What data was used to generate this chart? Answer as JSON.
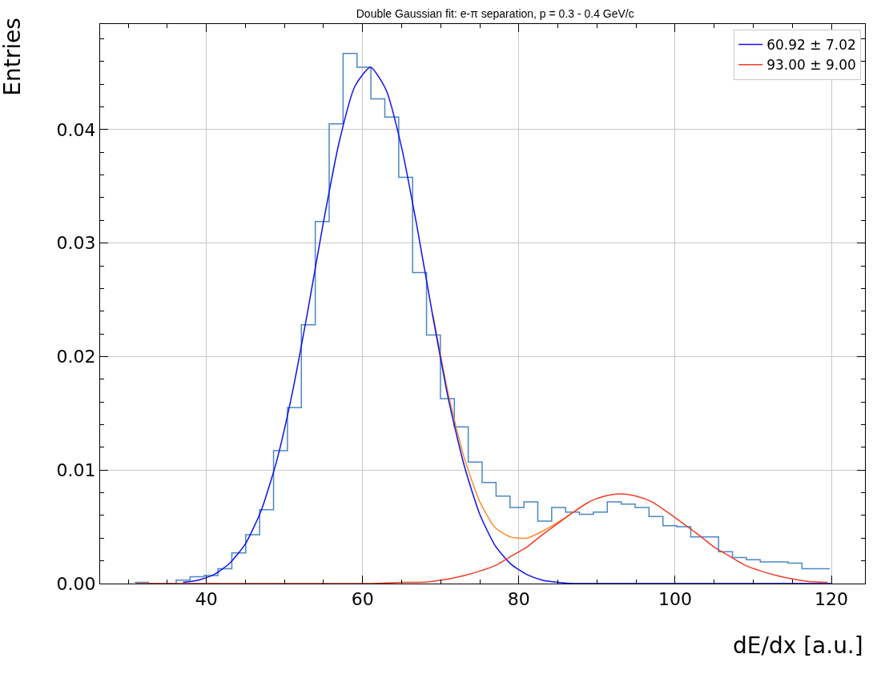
{
  "chart_data": {
    "type": "histogram",
    "title": "Double Gaussian fit: e-π separation, p = 0.3 - 0.4 GeV/c",
    "xlabel": "dE/dx [a.u.]",
    "ylabel": "Entries",
    "bins": [
      30.8,
      32.58,
      34.36,
      36.14,
      37.92,
      39.7,
      41.48,
      43.26,
      45.04,
      46.82,
      48.6,
      50.38,
      52.16,
      53.94,
      55.72,
      57.5,
      59.28,
      61.06,
      62.84,
      64.62,
      66.4,
      68.18,
      69.96,
      71.74,
      73.52,
      75.3,
      77.08,
      78.86,
      80.64,
      82.42,
      84.2,
      85.98,
      87.76,
      89.54,
      91.32,
      93.1,
      94.88,
      96.66,
      98.44,
      100.22,
      102,
      103.78,
      105.56,
      107.34,
      109.12,
      110.9,
      112.68,
      114.46,
      116.24,
      118.02,
      119.8
    ],
    "values": [
      0.0001,
      0,
      0,
      0.0003,
      0.0006,
      0.0007,
      0.0013,
      0.0027,
      0.0043,
      0.0065,
      0.0117,
      0.0155,
      0.0228,
      0.0319,
      0.0405,
      0.0467,
      0.0455,
      0.0427,
      0.0411,
      0.0358,
      0.0274,
      0.0219,
      0.0163,
      0.0138,
      0.0107,
      0.0089,
      0.0077,
      0.0067,
      0.0072,
      0.0055,
      0.0067,
      0.0063,
      0.0061,
      0.0063,
      0.0072,
      0.007,
      0.0067,
      0.0059,
      0.0051,
      0.005,
      0.0041,
      0.0041,
      0.0028,
      0.0023,
      0.0021,
      0.0019,
      0.0019,
      0.0018,
      0.0013,
      0.0013
    ],
    "color": "#4a86c6",
    "series": [
      {
        "type": "line",
        "color": "#ff8c28",
        "x": [
          69,
          71,
          73,
          75,
          77,
          79,
          81,
          83,
          85,
          87,
          89
        ],
        "values": [
          0.0237,
          0.0166,
          0.0111,
          0.0072,
          0.0049,
          0.0041,
          0.004,
          0.0046,
          0.0054,
          0.0063,
          0.0072
        ]
      },
      {
        "type": "line",
        "name": "60.92 ± 7.02",
        "color": "#1010ee",
        "x": [
          37,
          39,
          41,
          43,
          45,
          47,
          49,
          51,
          53,
          55,
          57,
          59,
          61,
          63,
          65,
          67,
          69,
          71,
          73,
          75,
          77,
          79,
          81,
          83,
          85,
          87,
          89,
          93,
          97,
          101,
          105,
          109,
          113,
          117,
          120
        ],
        "values": [
          0.0001,
          0.0003,
          0.0008,
          0.0018,
          0.0035,
          0.0064,
          0.0108,
          0.0168,
          0.0241,
          0.0319,
          0.0389,
          0.0438,
          0.0455,
          0.0435,
          0.0384,
          0.0313,
          0.0235,
          0.0162,
          0.0104,
          0.0061,
          0.0033,
          0.0017,
          0.0008,
          0.0003,
          0.0001,
          0,
          0,
          0,
          0,
          0,
          0,
          0,
          0,
          0,
          0
        ]
      },
      {
        "type": "line",
        "name": "93.00 ± 9.00",
        "color": "#f03c28",
        "x": [
          31,
          41,
          51,
          61,
          65,
          67,
          69,
          71,
          73,
          75,
          77,
          79,
          81,
          83,
          85,
          87,
          89,
          91,
          93,
          95,
          97,
          99,
          101,
          103,
          105,
          107,
          109,
          111,
          113,
          115,
          117,
          119.5
        ],
        "values": [
          0,
          0,
          0,
          0,
          0.0001,
          0.0001,
          0.0002,
          0.0004,
          0.0007,
          0.0011,
          0.0016,
          0.0024,
          0.0032,
          0.0043,
          0.0053,
          0.0063,
          0.0072,
          0.0077,
          0.0079,
          0.0077,
          0.0072,
          0.0063,
          0.0053,
          0.0043,
          0.0032,
          0.0024,
          0.0016,
          0.0011,
          0.0007,
          0.0004,
          0.0002,
          0.0001
        ]
      }
    ],
    "xlim": [
      26.4,
      124.3
    ],
    "xticks": [
      40,
      60,
      80,
      100,
      120
    ],
    "ylim": [
      0,
      0.0493
    ],
    "yticks": [
      {
        "value": 0,
        "label": "0.00"
      },
      {
        "value": 0.01,
        "label": "0.01"
      },
      {
        "value": 0.02,
        "label": "0.02"
      },
      {
        "value": 0.03,
        "label": "0.03"
      },
      {
        "value": 0.04,
        "label": "0.04"
      }
    ],
    "grid": true,
    "legend": "top right"
  }
}
